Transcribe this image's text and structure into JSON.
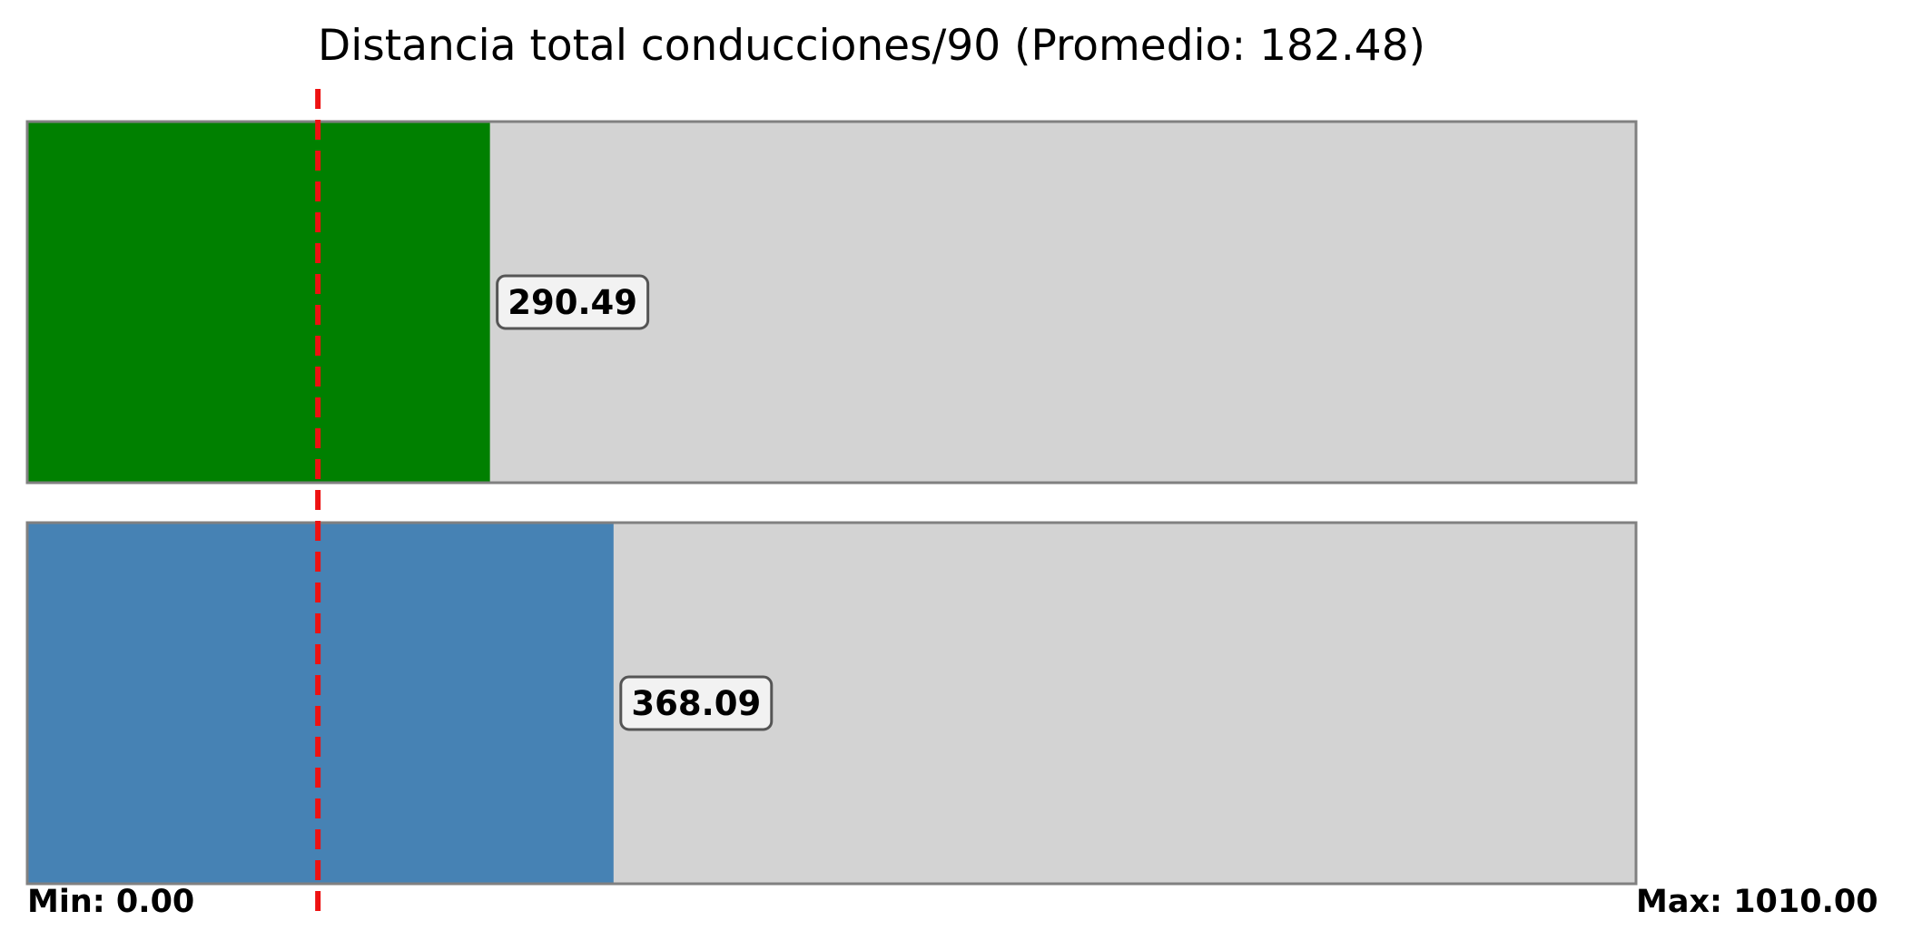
{
  "chart_data": {
    "type": "bar",
    "orientation": "horizontal",
    "title": "Distancia total conducciones/90 (Promedio: 182.48)",
    "xlim": [
      0,
      1010
    ],
    "average": 182.48,
    "average_line_color": "#ee1111",
    "track_color": "#d3d3d3",
    "series": [
      {
        "value": 290.49,
        "label": "290.49",
        "color": "#008000"
      },
      {
        "value": 368.09,
        "label": "368.09",
        "color": "#4682b4"
      }
    ],
    "min_label": "Min: 0.00",
    "max_label": "Max: 1010.00"
  }
}
